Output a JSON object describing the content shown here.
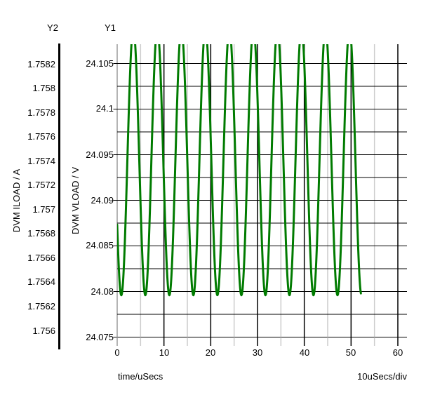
{
  "figure": {
    "background": "#ffffff",
    "y2_axis": {
      "title": "Y2",
      "unit_label": "DVM ILOAD / A",
      "tick_labels": [
        "1.7582",
        "1.758",
        "1.7578",
        "1.7576",
        "1.7574",
        "1.7572",
        "1.757",
        "1.7568",
        "1.7566",
        "1.7564",
        "1.7562",
        "1.756"
      ]
    },
    "y1_axis": {
      "title": "Y1",
      "unit_label": "DVM VLOAD / V",
      "tick_labels": [
        "24.105",
        "24.1",
        "24.095",
        "24.09",
        "24.085",
        "24.08",
        "24.075"
      ]
    },
    "x_axis": {
      "title": "time/uSecs",
      "scale_label": "10uSecs/div",
      "tick_labels": [
        "0",
        "10",
        "20",
        "30",
        "40",
        "50",
        "60"
      ]
    }
  },
  "chart_data": {
    "type": "line",
    "title": "",
    "xlabel": "time/uSecs",
    "x_axis": {
      "range_us": [
        0,
        60
      ],
      "minor_grid_step_us": 5,
      "major_grid_step_us": 10,
      "scale_per_div": "10uSecs/div"
    },
    "y1_axis": {
      "label": "DVM VLOAD / V",
      "unit": "V",
      "displayed_range": [
        24.075,
        24.1072
      ],
      "labeled_tick_step": 0.005,
      "grid_step": 0.0025,
      "tick_values": [
        24.105,
        24.1,
        24.095,
        24.09,
        24.085,
        24.08,
        24.075
      ]
    },
    "y2_axis": {
      "label": "DVM ILOAD / A",
      "unit": "A",
      "labeled_tick_step": 0.0002,
      "displayed_range": [
        1.756,
        1.7582
      ],
      "tick_values": [
        1.7582,
        1.758,
        1.7578,
        1.7576,
        1.7574,
        1.7572,
        1.757,
        1.7568,
        1.7566,
        1.7564,
        1.7562,
        1.756
      ]
    },
    "grid": {
      "horizontal_color": "#000000",
      "vertical_major_color": "#000000",
      "vertical_minor_color": "#cccccc",
      "y1_axis_line_color": "#b4b4b4",
      "y2_axis_line_color": "#000000",
      "legend": "none"
    },
    "series": [
      {
        "name": "DVM VLOAD",
        "y_axis": "Y1",
        "color": "#007b00",
        "line_width": 3,
        "waveform": {
          "shape": "sine",
          "mean_v": 24.0942,
          "amplitude_v": 0.0146,
          "period_us": 5.135,
          "first_peak_us": 3.45,
          "t_start_us": 0,
          "t_end_us": 52.1,
          "sample_step_us": 0.05,
          "display_clip_max_v": 24.1072,
          "observed_min_v": 24.0796,
          "observed_max_v": 24.1072,
          "num_visible_peaks": 10
        }
      }
    ]
  }
}
